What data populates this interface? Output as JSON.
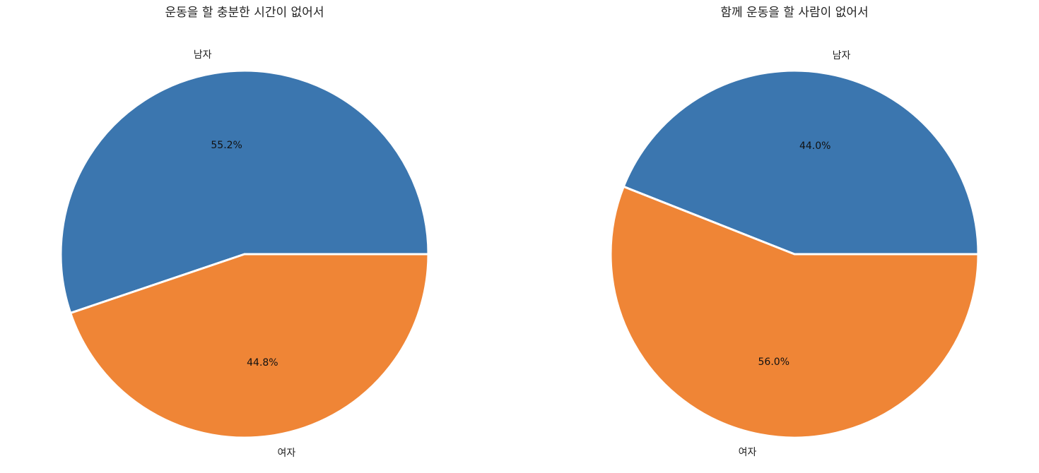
{
  "chart_data": [
    {
      "type": "pie",
      "title": "운동을 할 충분한 시간이 없어서",
      "labels": [
        "남자",
        "여자"
      ],
      "values": [
        55.2,
        44.8
      ],
      "autopct": [
        "55.2%",
        "44.8%"
      ],
      "colors": [
        "#3b76af",
        "#ef8536"
      ],
      "start_angle_deg": 0,
      "direction": "counterclockwise"
    },
    {
      "type": "pie",
      "title": "함께 운동을 할 사람이 없어서",
      "labels": [
        "남자",
        "여자"
      ],
      "values": [
        44.0,
        56.0
      ],
      "autopct": [
        "44.0%",
        "56.0%"
      ],
      "colors": [
        "#3b76af",
        "#ef8536"
      ],
      "start_angle_deg": 0,
      "direction": "counterclockwise"
    }
  ]
}
